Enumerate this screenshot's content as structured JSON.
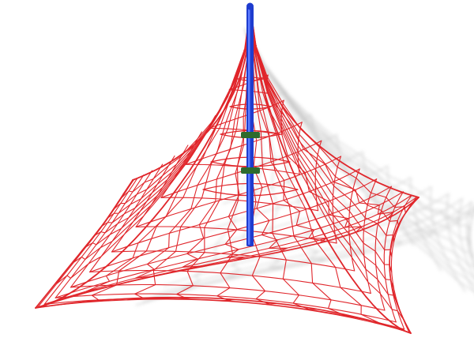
{
  "scene": {
    "subject": "rope-pyramid-climbing-net",
    "colors": {
      "background": "#ffffff",
      "rope": "#e0262b",
      "mast": "#1e3ccf",
      "mast_highlight": "#5d7cff",
      "shadow": "#9a9a9a",
      "clamp": "#2d6b2d"
    }
  }
}
